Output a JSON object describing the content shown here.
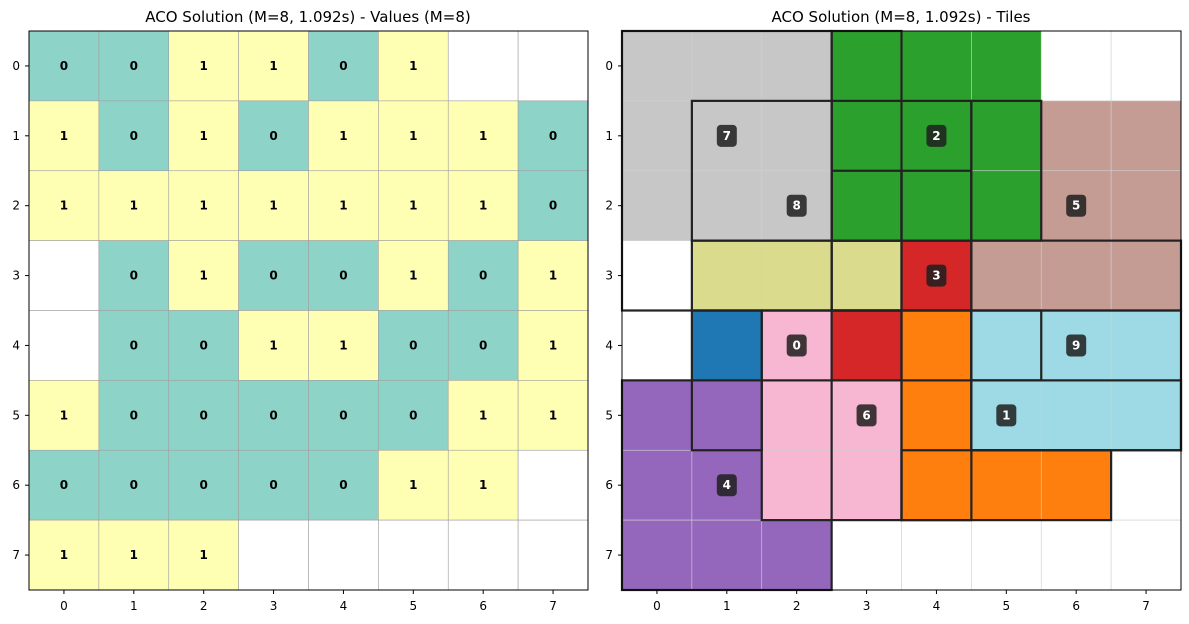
{
  "chart_data": [
    {
      "type": "heatmap",
      "title": "ACO Solution (M=8, 1.092s) - Values (M=8)",
      "x_ticks": [
        "0",
        "1",
        "2",
        "3",
        "4",
        "5",
        "6",
        "7"
      ],
      "y_ticks": [
        "0",
        "1",
        "2",
        "3",
        "4",
        "5",
        "6",
        "7"
      ],
      "colors": {
        "0": "#8dd3c7",
        "1": "#ffffb3",
        "empty": "#ffffff"
      },
      "grid": [
        [
          0,
          0,
          1,
          1,
          0,
          1,
          null,
          null
        ],
        [
          1,
          0,
          1,
          0,
          1,
          1,
          1,
          0
        ],
        [
          1,
          1,
          1,
          1,
          1,
          1,
          1,
          0
        ],
        [
          null,
          0,
          1,
          0,
          0,
          1,
          0,
          1
        ],
        [
          null,
          0,
          0,
          1,
          1,
          0,
          0,
          1
        ],
        [
          1,
          0,
          0,
          0,
          0,
          0,
          1,
          1
        ],
        [
          0,
          0,
          0,
          0,
          0,
          1,
          1,
          null
        ],
        [
          1,
          1,
          1,
          null,
          null,
          null,
          null,
          null
        ]
      ]
    },
    {
      "type": "heatmap",
      "title": "ACO Solution (M=8, 1.092s) - Tiles",
      "x_ticks": [
        "0",
        "1",
        "2",
        "3",
        "4",
        "5",
        "6",
        "7"
      ],
      "y_ticks": [
        "0",
        "1",
        "2",
        "3",
        "4",
        "5",
        "6",
        "7"
      ],
      "fills": [
        [
          "#c7c7c7",
          "#c7c7c7",
          "#c7c7c7",
          "#2ca02c",
          "#2ca02c",
          "#2ca02c",
          null,
          null
        ],
        [
          "#c7c7c7",
          "#c7c7c7",
          "#c7c7c7",
          "#2ca02c",
          "#2ca02c",
          "#2ca02c",
          "#c49c94",
          "#c49c94"
        ],
        [
          "#c7c7c7",
          "#c7c7c7",
          "#c7c7c7",
          "#2ca02c",
          "#2ca02c",
          "#2ca02c",
          "#c49c94",
          "#c49c94"
        ],
        [
          null,
          "#dbdb8d",
          "#dbdb8d",
          "#dbdb8d",
          "#d62728",
          "#c49c94",
          "#c49c94",
          "#c49c94"
        ],
        [
          null,
          "#1f77b4",
          "#f7b6d2",
          "#d62728",
          "#ff7f0e",
          "#9edae5",
          "#9edae5",
          "#9edae5"
        ],
        [
          "#9467bd",
          "#9467bd",
          "#f7b6d2",
          "#f7b6d2",
          "#ff7f0e",
          "#9edae5",
          "#9edae5",
          "#9edae5"
        ],
        [
          "#9467bd",
          "#9467bd",
          "#f7b6d2",
          "#f7b6d2",
          "#ff7f0e",
          "#ff7f0e",
          "#ff7f0e",
          null
        ],
        [
          "#9467bd",
          "#9467bd",
          "#9467bd",
          null,
          null,
          null,
          null,
          null
        ]
      ],
      "tile_outlines": [
        [
          0,
          0,
          2,
          3
        ],
        [
          3,
          0,
          3,
          3
        ],
        [
          1,
          1,
          2,
          2
        ],
        [
          3,
          1,
          4,
          2
        ],
        [
          5,
          1,
          5,
          2
        ],
        [
          3,
          2,
          3,
          2
        ],
        [
          4,
          2,
          4,
          2
        ],
        [
          0,
          5,
          2,
          7
        ],
        [
          1,
          4,
          1,
          5
        ],
        [
          1,
          3,
          3,
          3
        ],
        [
          2,
          4,
          3,
          6
        ],
        [
          3,
          3,
          4,
          3
        ],
        [
          3,
          4,
          4,
          4
        ],
        [
          4,
          4,
          4,
          6
        ],
        [
          5,
          3,
          7,
          3
        ],
        [
          5,
          4,
          5,
          4
        ],
        [
          5,
          5,
          7,
          5
        ],
        [
          5,
          4,
          7,
          5
        ],
        [
          4,
          6,
          6,
          6
        ]
      ],
      "tile_labels": [
        {
          "label": "7",
          "row": 1,
          "col": 1
        },
        {
          "label": "2",
          "row": 1,
          "col": 4
        },
        {
          "label": "8",
          "row": 2,
          "col": 2
        },
        {
          "label": "5",
          "row": 2,
          "col": 6
        },
        {
          "label": "3",
          "row": 3,
          "col": 4
        },
        {
          "label": "0",
          "row": 4,
          "col": 2
        },
        {
          "label": "9",
          "row": 4,
          "col": 6
        },
        {
          "label": "6",
          "row": 5,
          "col": 3
        },
        {
          "label": "1",
          "row": 5,
          "col": 5
        },
        {
          "label": "4",
          "row": 6,
          "col": 1
        }
      ]
    }
  ]
}
